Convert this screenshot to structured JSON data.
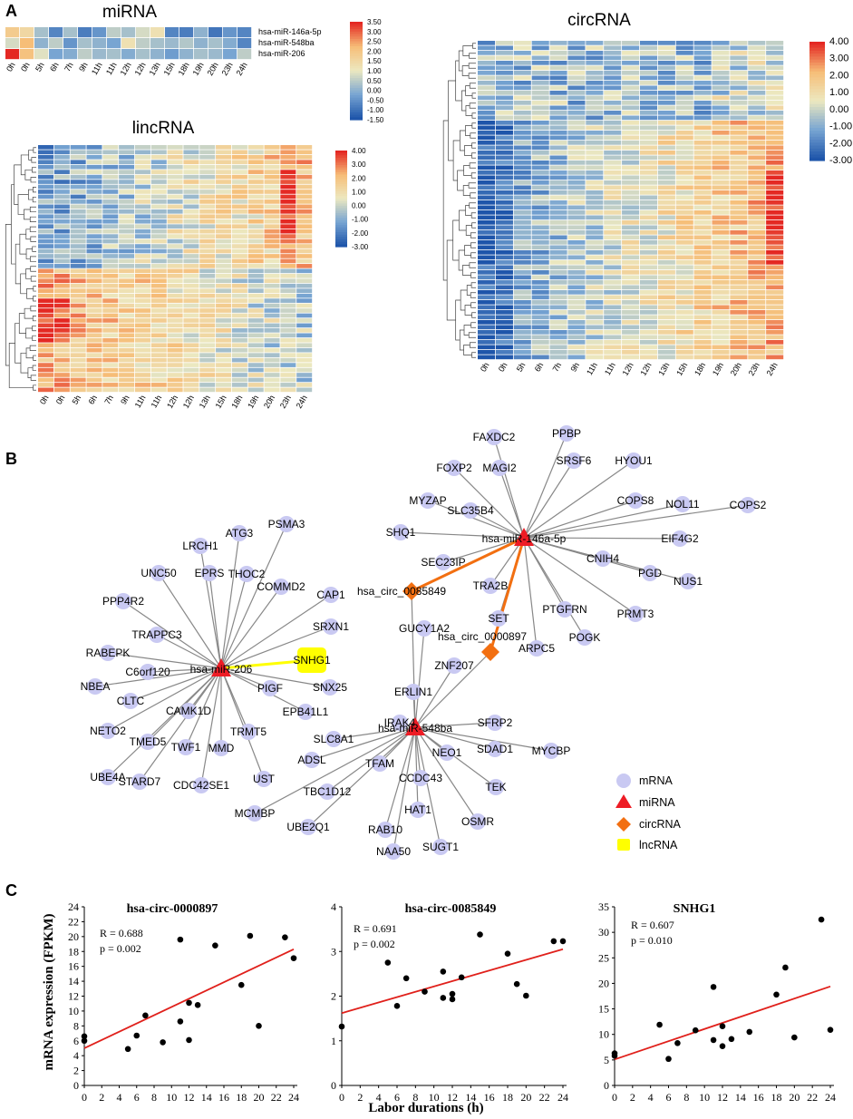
{
  "panels": [
    "A",
    "B",
    "C"
  ],
  "heatmaps": {
    "mirna": {
      "title": "miRNA",
      "rows": [
        "hsa-miR-146a-5p",
        "hsa-miR-548ba",
        "hsa-miR-206"
      ],
      "cols": [
        "0h",
        "0h",
        "5h",
        "6h",
        "7h",
        "9h",
        "11h",
        "11h",
        "12h",
        "12h",
        "13h",
        "15h",
        "18h",
        "19h",
        "20h",
        "23h",
        "24h"
      ],
      "colorbar": [
        "3.50",
        "3.00",
        "2.50",
        "2.00",
        "1.50",
        "1.00",
        "0.50",
        "0.00",
        "-0.50",
        "-1.00",
        "-1.50"
      ]
    },
    "lincrna": {
      "title": "lincRNA",
      "cols": [
        "0h",
        "0h",
        "5h",
        "6h",
        "7h",
        "9h",
        "11h",
        "11h",
        "12h",
        "12h",
        "13h",
        "15h",
        "18h",
        "19h",
        "20h",
        "23h",
        "24h"
      ],
      "colorbar": [
        "4.00",
        "3.00",
        "2.00",
        "1.00",
        "0.00",
        "-1.00",
        "-2.00",
        "-3.00"
      ]
    },
    "circrna": {
      "title": "circRNA",
      "cols": [
        "0h",
        "0h",
        "5h",
        "6h",
        "7h",
        "9h",
        "11h",
        "11h",
        "12h",
        "12h",
        "13h",
        "15h",
        "18h",
        "19h",
        "20h",
        "23h",
        "24h"
      ],
      "colorbar": [
        "4.00",
        "3.00",
        "2.00",
        "1.00",
        "0.00",
        "-1.00",
        "-2.00",
        "-3.00"
      ]
    }
  },
  "network": {
    "hubs": {
      "mir146": "hsa-miR-146a-5p",
      "mir206": "hsa-miR-206",
      "mir548": "hsa-miR-548ba",
      "circ85849": "hsa_circ_0085849",
      "circ897": "hsa_circ_0000897",
      "snhg1": "SNHG1"
    },
    "targets146": [
      "FAXDC2",
      "PPBP",
      "FOXP2",
      "MAGI2",
      "SRSF6",
      "HYOU1",
      "MYZAP",
      "SLC35B4",
      "COPS8",
      "NOL11",
      "COPS2",
      "SHQ1",
      "EIF4G2",
      "SEC23IP",
      "CNIH4",
      "PGD",
      "NUS1",
      "TRA2B",
      "PTGFRN",
      "PRMT3",
      "SET",
      "POGK",
      "ARPC5"
    ],
    "targets206": [
      "LRCH1",
      "ATG3",
      "PSMA3",
      "UNC50",
      "EPRS",
      "THOC2",
      "COMMD2",
      "CAP1",
      "PPP4R2",
      "SRXN1",
      "TRAPPC3",
      "RABEPK",
      "C6orf120",
      "NBEA",
      "CLTC",
      "CAMK1D",
      "NETO2",
      "TMED5",
      "TWF1",
      "MMD",
      "TRMT5",
      "UBE4A",
      "STARD7",
      "CDC42SE1",
      "UST",
      "PIGF",
      "SNX25",
      "EPB41L1"
    ],
    "targets548": [
      "GUCY1A2",
      "ZNF207",
      "ERLIN1",
      "IRAK4",
      "SFRP2",
      "SLC8A1",
      "ADSL",
      "TFAM",
      "NEO1",
      "SDAD1",
      "MYCBP",
      "CCDC43",
      "TBC1D12",
      "TEK",
      "HAT1",
      "RAB10",
      "OSMR",
      "MCMBP",
      "UBE2Q1",
      "NAA50",
      "SUGT1"
    ],
    "legend": [
      "mRNA",
      "miRNA",
      "circRNA",
      "lncRNA"
    ]
  },
  "colors": {
    "mrna": "#c9c9f2",
    "mirna": "#ee1c25",
    "circrna": "#f26f11",
    "lncrna": "#ffff00",
    "fit_line": "#e0201b"
  },
  "chart_data": [
    {
      "type": "scatter",
      "title": "hsa-circ-0000897",
      "stats": [
        "R = 0.688",
        "p = 0.002"
      ],
      "xlabel": "Labor durations (h)",
      "ylabel": "mRNA expression (FPKM)",
      "xlim": [
        0,
        24
      ],
      "ylim": [
        0,
        24
      ],
      "xticks": [
        0,
        2,
        4,
        6,
        8,
        10,
        12,
        14,
        16,
        18,
        20,
        22,
        24
      ],
      "yticks": [
        0,
        2,
        4,
        6,
        8,
        10,
        12,
        14,
        16,
        18,
        20,
        22,
        24
      ],
      "x": [
        0,
        0,
        5,
        6,
        7,
        9,
        11,
        11,
        12,
        12,
        13,
        15,
        18,
        19,
        20,
        23,
        24
      ],
      "y": [
        6.6,
        6.0,
        4.9,
        6.7,
        9.4,
        5.8,
        8.6,
        19.6,
        11.1,
        6.1,
        10.8,
        18.8,
        13.5,
        20.1,
        8.0,
        19.9,
        17.1
      ],
      "fit": [
        [
          0,
          5.0
        ],
        [
          24,
          18.3
        ]
      ]
    },
    {
      "type": "scatter",
      "title": "hsa-circ-0085849",
      "stats": [
        "R = 0.691",
        "p = 0.002"
      ],
      "xlabel": "Labor durations (h)",
      "ylabel": "",
      "xlim": [
        0,
        24
      ],
      "ylim": [
        0,
        4
      ],
      "xticks": [
        0,
        2,
        4,
        6,
        8,
        10,
        12,
        14,
        16,
        18,
        20,
        22,
        24
      ],
      "yticks": [
        0,
        1,
        2,
        3,
        4
      ],
      "x": [
        0,
        5,
        6,
        7,
        9,
        11,
        11,
        12,
        12,
        13,
        15,
        18,
        19,
        20,
        23,
        24
      ],
      "y": [
        1.32,
        2.75,
        1.78,
        2.4,
        2.1,
        2.55,
        1.96,
        2.05,
        1.93,
        2.42,
        3.38,
        2.95,
        2.27,
        2.01,
        3.23,
        3.23
      ],
      "fit": [
        [
          0,
          1.62
        ],
        [
          24,
          3.05
        ]
      ]
    },
    {
      "type": "scatter",
      "title": "SNHG1",
      "stats": [
        "R = 0.607",
        "p = 0.010"
      ],
      "xlabel": "Labor durations (h)",
      "ylabel": "",
      "xlim": [
        0,
        24
      ],
      "ylim": [
        0,
        35
      ],
      "xticks": [
        0,
        2,
        4,
        6,
        8,
        10,
        12,
        14,
        16,
        18,
        20,
        22,
        24
      ],
      "yticks": [
        0,
        5,
        10,
        15,
        20,
        25,
        30,
        35
      ],
      "x": [
        0,
        0,
        5,
        6,
        7,
        9,
        11,
        11,
        12,
        12,
        13,
        15,
        18,
        19,
        20,
        23,
        24
      ],
      "y": [
        6.3,
        5.8,
        11.9,
        5.2,
        8.3,
        10.8,
        19.3,
        8.9,
        11.6,
        7.7,
        9.1,
        10.5,
        17.8,
        23.1,
        9.4,
        32.5,
        10.9
      ],
      "fit": [
        [
          0,
          5.1
        ],
        [
          24,
          19.4
        ]
      ]
    }
  ]
}
